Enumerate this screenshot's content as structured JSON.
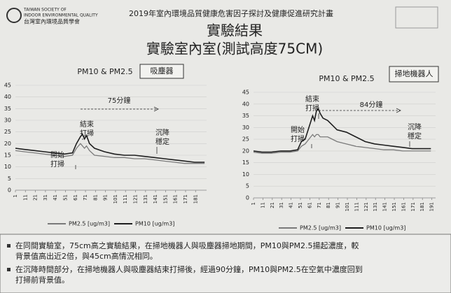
{
  "header": {
    "logo_en": [
      "TAIWAN SOCIETY OF",
      "INDOOR ENVIRONMENTAL QUALITY"
    ],
    "logo_zh": "台灣室內環境品質學會",
    "project": "2019年室內環境品質健康危害因子探討及健康促進研究計畫",
    "title": "實驗結果",
    "subtitle": "實驗室內室(測試高度75CM)"
  },
  "chart_data": [
    {
      "type": "line",
      "title": "PM10 & PM2.5",
      "device": "吸塵器",
      "x": [
        1,
        10,
        20,
        30,
        40,
        50,
        58,
        62,
        66,
        68,
        70,
        72,
        75,
        80,
        90,
        100,
        110,
        120,
        130,
        140,
        150,
        160,
        170,
        180,
        190
      ],
      "xlim": [
        1,
        192
      ],
      "xticks": [
        1,
        11,
        21,
        31,
        41,
        51,
        61,
        71,
        81,
        91,
        101,
        111,
        121,
        131,
        141,
        151,
        161,
        171,
        181
      ],
      "ylim": [
        0,
        45
      ],
      "yticks": [
        0,
        5,
        10,
        15,
        20,
        25,
        30,
        35,
        40,
        45
      ],
      "series": [
        {
          "name": "PM2.5 [ug/m3]",
          "color": "#7a7a7a",
          "values": [
            17,
            16.5,
            16,
            15.5,
            15,
            14.5,
            15,
            18,
            20,
            19,
            18,
            19,
            17,
            15,
            14.5,
            14,
            14,
            13.5,
            13.5,
            13,
            12.5,
            12,
            11.5,
            11.5,
            11.5
          ]
        },
        {
          "name": "PM10 [ug/m3]",
          "color": "#1e1e1e",
          "values": [
            18,
            17.5,
            17,
            16.5,
            16,
            15.5,
            16,
            20,
            23,
            24,
            22,
            23.5,
            20,
            18,
            16.5,
            15.5,
            15,
            15,
            14.5,
            14,
            13.5,
            13,
            12.5,
            12,
            12
          ]
        }
      ],
      "annotations": {
        "start": [
          "開始",
          "打掃"
        ],
        "end": [
          "結束",
          "打掃"
        ],
        "settle": [
          "沉降",
          "穩定"
        ],
        "duration": "75分鐘"
      }
    },
    {
      "type": "line",
      "title": "PM10 & PM2.5",
      "device": "掃地機器人",
      "x": [
        1,
        10,
        20,
        30,
        40,
        48,
        52,
        56,
        60,
        64,
        66,
        68,
        70,
        72,
        75,
        80,
        85,
        90,
        100,
        110,
        120,
        130,
        140,
        150,
        160,
        170,
        180,
        190
      ],
      "xlim": [
        1,
        195
      ],
      "xticks": [
        1,
        11,
        21,
        31,
        41,
        51,
        61,
        71,
        81,
        91,
        101,
        111,
        121,
        131,
        141,
        151,
        161,
        171,
        181,
        191
      ],
      "ylim": [
        0,
        45
      ],
      "yticks": [
        0,
        5,
        10,
        15,
        20,
        25,
        30,
        35,
        40,
        45
      ],
      "series": [
        {
          "name": "PM2.5 [ug/m3]",
          "color": "#7a7a7a",
          "values": [
            19.5,
            19,
            19,
            19.5,
            19.5,
            20,
            22,
            23,
            25,
            27,
            26,
            27,
            27,
            26,
            26,
            26,
            25,
            24,
            23,
            22,
            21.5,
            21,
            20.5,
            20.5,
            20,
            20,
            20,
            20
          ]
        },
        {
          "name": "PM10 [ug/m3]",
          "color": "#1e1e1e",
          "values": [
            20,
            19.5,
            19.5,
            20,
            20,
            20.5,
            24,
            25,
            30,
            35,
            33,
            37,
            38,
            36,
            34,
            33,
            31,
            29,
            28,
            26,
            24,
            23,
            22.5,
            22,
            21.5,
            21,
            21,
            21
          ]
        }
      ],
      "annotations": {
        "start": [
          "開始",
          "打掃"
        ],
        "end": [
          "結束",
          "打掃"
        ],
        "settle": [
          "沉降",
          "穩定"
        ],
        "duration": "84分鐘"
      }
    }
  ],
  "notes": [
    [
      "在同間實驗室，75cm高之實驗結果，在掃地機器人與吸塵器掃地期間，PM10與PM2.5揚起濃度，較",
      "背景值高出近2倍，與45cm高情況相同。"
    ],
    [
      "在沉降時間部分，在掃地機器人與吸塵器結束打掃後，經過90分鐘，PM10與PM2.5在空氣中濃度回到",
      "打掃前背景值。"
    ]
  ]
}
